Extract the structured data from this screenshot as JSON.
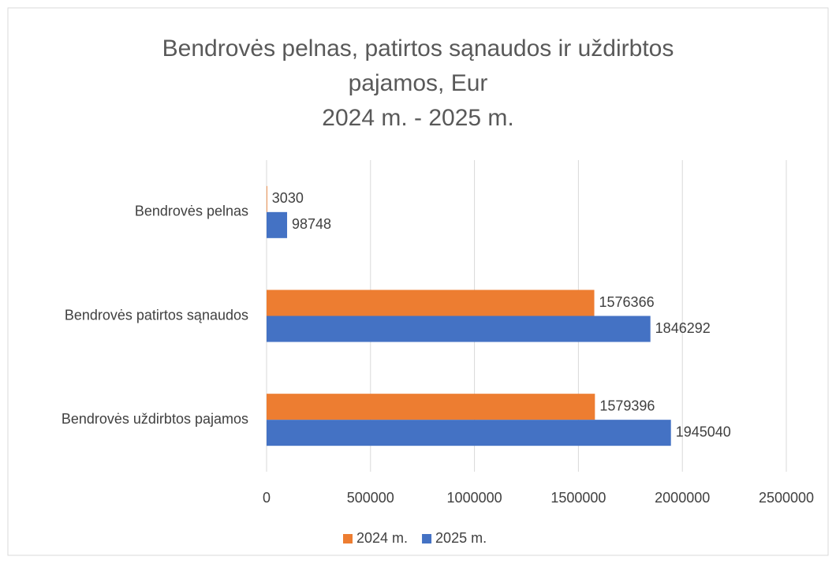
{
  "chart_data": {
    "type": "hbar",
    "title": "Bendrovės pelnas, patirtos sąnaudos ir uždirbtos pajamos, Eur",
    "subtitle": "2024 m. - 2025 m.",
    "categories": [
      "Bendrovės pelnas",
      "Bendrovės patirtos sąnaudos",
      "Bendrovės uždirbtos pajamos"
    ],
    "series": [
      {
        "name": "2024 m.",
        "color": "#ed7d31",
        "values": [
          3030,
          1576366,
          1579396
        ]
      },
      {
        "name": "2025 m.",
        "color": "#4472c4",
        "values": [
          98748,
          1846292,
          1945040
        ]
      }
    ],
    "xlim": [
      0,
      2500000
    ],
    "xticks": [
      0,
      500000,
      1000000,
      1500000,
      2000000,
      2500000
    ],
    "grid": true,
    "legend": "bottom"
  }
}
